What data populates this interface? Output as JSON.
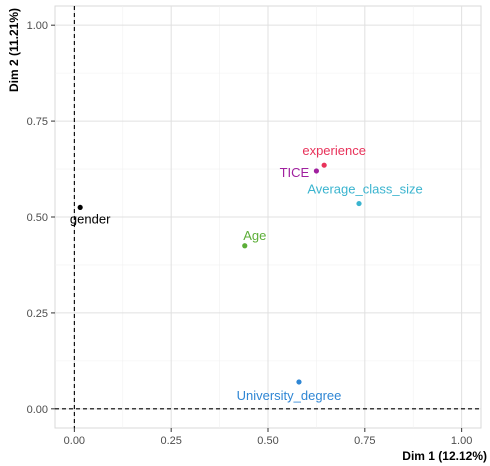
{
  "chart_data": {
    "type": "scatter",
    "title": "",
    "xlabel": "Dim 1 (12.12%)",
    "ylabel": "Dim 2 (11.21%)",
    "xlim": [
      -0.05,
      1.05
    ],
    "ylim": [
      -0.05,
      1.05
    ],
    "xticks": [
      0.0,
      0.25,
      0.5,
      0.75,
      1.0
    ],
    "xtick_labels": [
      "0.00",
      "0.25",
      "0.50",
      "0.75",
      "1.00"
    ],
    "yticks": [
      0.0,
      0.25,
      0.5,
      0.75,
      1.0
    ],
    "ytick_labels": [
      "0.00",
      "0.25",
      "0.50",
      "0.75",
      "1.00"
    ],
    "grid": true,
    "reference_lines": {
      "x": 0,
      "y": 0,
      "style": "dashed"
    },
    "points": [
      {
        "label": "gender",
        "x": 0.015,
        "y": 0.525,
        "color": "#000000"
      },
      {
        "label": "experience",
        "x": 0.645,
        "y": 0.635,
        "color": "#e8325a"
      },
      {
        "label": "TICE",
        "x": 0.625,
        "y": 0.62,
        "color": "#a0209f"
      },
      {
        "label": "Average_class_size",
        "x": 0.735,
        "y": 0.535,
        "color": "#3ab4cf"
      },
      {
        "label": "Age",
        "x": 0.44,
        "y": 0.425,
        "color": "#5cae38"
      },
      {
        "label": "University_degree",
        "x": 0.58,
        "y": 0.07,
        "color": "#2f86d4"
      }
    ]
  }
}
